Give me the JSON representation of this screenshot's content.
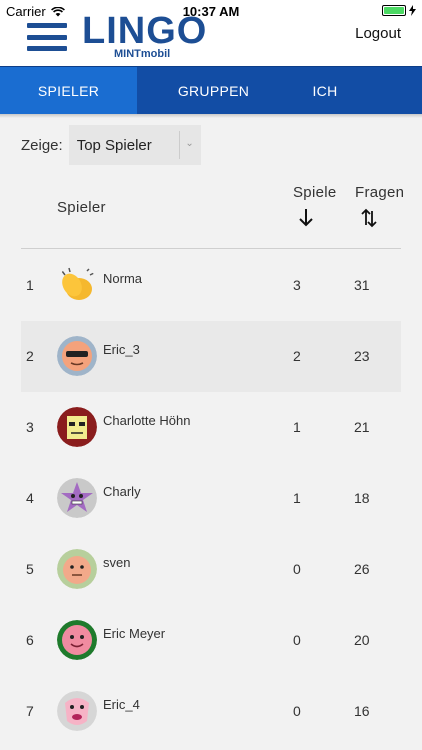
{
  "status_bar": {
    "carrier": "Carrier",
    "time": "10:37 AM"
  },
  "header": {
    "logo": "LINGO",
    "logo_sub": "MINTmobil",
    "logout_label": "Logout"
  },
  "tabs": [
    {
      "label": "SPIELER",
      "active": true
    },
    {
      "label": "GRUPPEN",
      "active": false
    },
    {
      "label": "ICH",
      "active": false
    }
  ],
  "filter": {
    "label": "Zeige:",
    "selected": "Top Spieler"
  },
  "table": {
    "col_player": "Spieler",
    "col_games": "Spiele",
    "col_questions": "Fragen",
    "rows": [
      {
        "rank": "1",
        "name": "Norma",
        "games": "3",
        "questions": "31",
        "avatar": "clapping-hands-icon"
      },
      {
        "rank": "2",
        "name": "Eric_3",
        "games": "2",
        "questions": "23",
        "avatar": "sunglasses-face-icon"
      },
      {
        "rank": "3",
        "name": "Charlotte Höhn",
        "games": "1",
        "questions": "21",
        "avatar": "square-face-icon"
      },
      {
        "rank": "4",
        "name": "Charly",
        "games": "1",
        "questions": "18",
        "avatar": "star-face-icon"
      },
      {
        "rank": "5",
        "name": "sven",
        "games": "0",
        "questions": "26",
        "avatar": "peach-face-icon"
      },
      {
        "rank": "6",
        "name": "Eric Meyer",
        "games": "0",
        "questions": "20",
        "avatar": "pink-face-icon"
      },
      {
        "rank": "7",
        "name": "Eric_4",
        "games": "0",
        "questions": "16",
        "avatar": "lips-face-icon"
      }
    ]
  }
}
